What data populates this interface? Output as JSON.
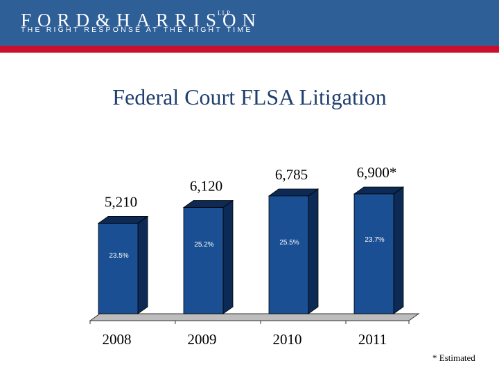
{
  "header": {
    "logo_text": "FORD&HARRISON",
    "logo_suffix": "LLP",
    "tagline": "THE RIGHT RESPONSE AT THE RIGHT TIME"
  },
  "colors": {
    "header_blue": "#2f5f97",
    "accent_red": "#c8102e",
    "bar_front": "#1b4f93",
    "bar_side": "#0c2a55"
  },
  "chart_data": {
    "type": "bar",
    "title": "Federal Court FLSA Litigation",
    "categories": [
      "2008",
      "2009",
      "2010",
      "2011"
    ],
    "values": [
      5210,
      6120,
      6785,
      6900
    ],
    "value_labels": [
      "5,210",
      "6,120",
      "6,785",
      "6,900*"
    ],
    "percent_labels": [
      "23.5%",
      "25.2%",
      "25.5%",
      "23.7%"
    ],
    "ylim": [
      0,
      7500
    ],
    "grid": false,
    "legend": "none"
  },
  "footnote": "* Estimated"
}
